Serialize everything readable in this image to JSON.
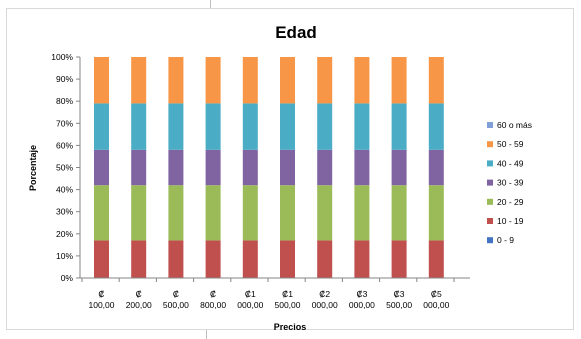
{
  "chart_data": {
    "type": "bar",
    "stacked": true,
    "percent": true,
    "title": "Edad",
    "xlabel": "Precios",
    "ylabel": "Porcentaje",
    "ylim": [
      0,
      100
    ],
    "yticks": [
      "0%",
      "10%",
      "20%",
      "30%",
      "40%",
      "50%",
      "60%",
      "70%",
      "80%",
      "90%",
      "100%"
    ],
    "categories": [
      [
        "₡",
        "100,00"
      ],
      [
        "₡",
        "200,00"
      ],
      [
        "₡",
        "500,00"
      ],
      [
        "₡",
        "800,00"
      ],
      [
        "₡1",
        "000,00"
      ],
      [
        "₡1",
        "500,00"
      ],
      [
        "₡2",
        "000,00"
      ],
      [
        "₡3",
        "000,00"
      ],
      [
        "₡3",
        "500,00"
      ],
      [
        "₡5",
        "000,00"
      ]
    ],
    "series": [
      {
        "name": "0 - 9",
        "color": "#4472c4",
        "values": [
          0,
          0,
          0,
          0,
          0,
          0,
          0,
          0,
          0,
          0
        ]
      },
      {
        "name": "10 - 19",
        "color": "#c0504d",
        "values": [
          17,
          17,
          17,
          17,
          17,
          17,
          17,
          17,
          17,
          17
        ]
      },
      {
        "name": "20 - 29",
        "color": "#9bbb59",
        "values": [
          25,
          25,
          25,
          25,
          25,
          25,
          25,
          25,
          25,
          25
        ]
      },
      {
        "name": "30 - 39",
        "color": "#8064a2",
        "values": [
          16,
          16,
          16,
          16,
          16,
          16,
          16,
          16,
          16,
          16
        ]
      },
      {
        "name": "40 - 49",
        "color": "#4bacc6",
        "values": [
          21,
          21,
          21,
          21,
          21,
          21,
          21,
          21,
          21,
          21
        ]
      },
      {
        "name": "50 - 59",
        "color": "#f79646",
        "values": [
          21,
          21,
          21,
          21,
          21,
          21,
          21,
          21,
          21,
          21
        ]
      },
      {
        "name": "60 o más",
        "color": "#7f9fd6",
        "values": [
          0,
          0,
          0,
          0,
          0,
          0,
          0,
          0,
          0,
          0
        ]
      }
    ],
    "legend_position": "right",
    "grid": false
  }
}
